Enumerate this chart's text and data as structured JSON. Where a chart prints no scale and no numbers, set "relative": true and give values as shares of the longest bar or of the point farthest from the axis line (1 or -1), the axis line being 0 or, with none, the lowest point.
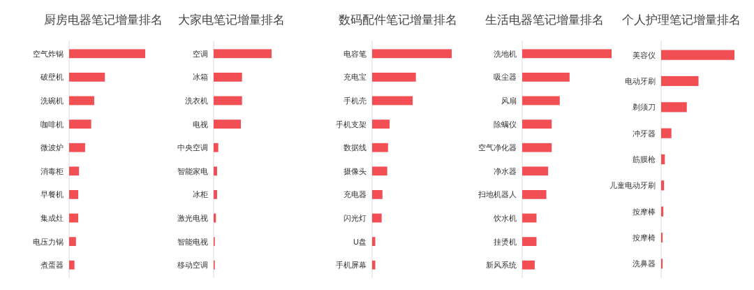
{
  "chart_data": [
    {
      "type": "bar",
      "orientation": "horizontal",
      "relative": true,
      "title": "厨房电器笔记增量排名",
      "color": "#f24f55",
      "categories": [
        "空气炸锅",
        "破壁机",
        "洗碗机",
        "咖啡机",
        "微波炉",
        "消毒柜",
        "早餐机",
        "集成灶",
        "电压力锅",
        "煮蛋器"
      ],
      "values": [
        1,
        0.47,
        0.33,
        0.29,
        0.21,
        0.13,
        0.12,
        0.12,
        0.09,
        0.07
      ]
    },
    {
      "type": "bar",
      "orientation": "horizontal",
      "relative": true,
      "title": "大家电笔记增量排名",
      "color": "#f24f55",
      "categories": [
        "空调",
        "冰箱",
        "洗衣机",
        "电视",
        "中央空调",
        "智能家电",
        "冰柜",
        "激光电视",
        "智能电视",
        "移动空调"
      ],
      "values": [
        1,
        0.49,
        0.49,
        0.47,
        0.08,
        0.06,
        0.06,
        0.04,
        0.02,
        0.02
      ]
    },
    {
      "type": "bar",
      "orientation": "horizontal",
      "relative": true,
      "title": "数码配件笔记增量排名",
      "color": "#f24f55",
      "categories": [
        "电容笔",
        "充电宝",
        "手机壳",
        "手机支架",
        "数据线",
        "摄像头",
        "充电器",
        "闪光灯",
        "U盘",
        "手机屏幕"
      ],
      "values": [
        1,
        0.55,
        0.51,
        0.22,
        0.2,
        0.19,
        0.13,
        0.12,
        0.04,
        0.04
      ]
    },
    {
      "type": "bar",
      "orientation": "horizontal",
      "relative": true,
      "title": "生活电器笔记增量排名",
      "color": "#f24f55",
      "categories": [
        "洗地机",
        "吸尘器",
        "风扇",
        "除螨仪",
        "空气净化器",
        "净水器",
        "扫地机器人",
        "饮水机",
        "挂烫机",
        "新风系统"
      ],
      "values": [
        1,
        0.53,
        0.42,
        0.33,
        0.33,
        0.29,
        0.27,
        0.16,
        0.16,
        0.14
      ]
    },
    {
      "type": "bar",
      "orientation": "horizontal",
      "relative": true,
      "title": "个人护理笔记增量排名",
      "color": "#f24f55",
      "categories": [
        "美容仪",
        "电动牙刷",
        "剃须刀",
        "冲牙器",
        "筋膜枪",
        "儿童电动牙刷",
        "按摩棒",
        "按摩椅",
        "洗鼻器"
      ],
      "values": [
        1,
        0.51,
        0.35,
        0.14,
        0.05,
        0.04,
        0.03,
        0.02,
        0.02
      ]
    }
  ]
}
